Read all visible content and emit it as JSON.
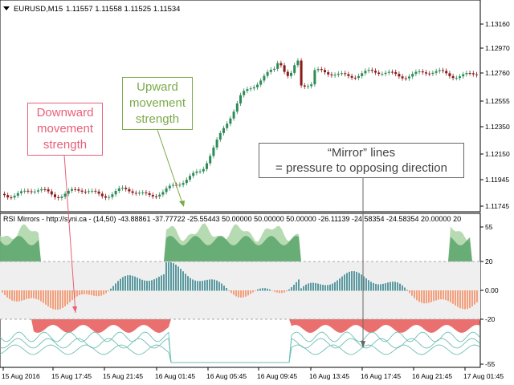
{
  "main_chart": {
    "title": "EURUSD,M15",
    "ohlc": [
      "1.11557",
      "1.11558",
      "1.11525",
      "1.11534"
    ],
    "price_labels": [
      "1.13160",
      "1.12970",
      "1.12760",
      "1.12555",
      "1.12350",
      "1.12150",
      "1.11945",
      "1.11745"
    ]
  },
  "indicator": {
    "header": "RSI Mirrors - http://syni.ca - (14,50) -43.88861 -37.77722 -25.55443 50.00000 50.00000 50.00000 -26.11139 -24.58354 -24.58354 20.00000 20",
    "levels": [
      "55",
      "20",
      "0.00",
      "-20",
      "-55"
    ]
  },
  "time_axis": [
    "15 Aug 2016",
    "15 Aug 17:45",
    "15 Aug 21:45",
    "16 Aug 01:45",
    "16 Aug 05:45",
    "16 Aug 09:45",
    "16 Aug 13:45",
    "16 Aug 17:45",
    "16 Aug 21:45",
    "17 Aug 01:45"
  ],
  "callouts": {
    "downward": [
      "Downward",
      "movement",
      "strength"
    ],
    "upward": [
      "Upward",
      "movement",
      "strength"
    ],
    "mirror": [
      "“Mirror” lines",
      "= pressure to opposing direction"
    ]
  },
  "colors": {
    "bull": "#2e8b57",
    "bear": "#8b1a1a",
    "green_area": "#5aa36c",
    "light_green": "#a9d4a3",
    "red_area": "#e86060",
    "salmon_hist": "#f4a07c",
    "teal_hist": "#5a9aa0",
    "mirror_line": "#6fbfb5",
    "downward_callout": "#e8607a",
    "upward_callout": "#7caa4a"
  }
}
